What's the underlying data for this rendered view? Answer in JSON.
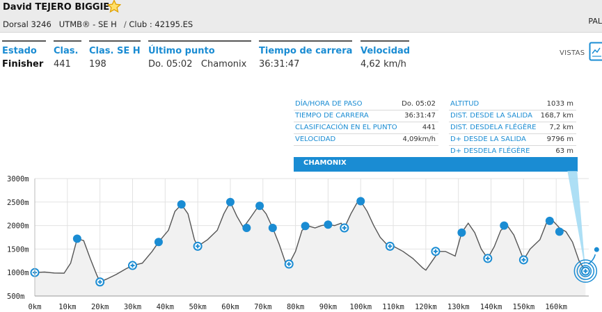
{
  "runner": {
    "name": "David TEJERO BIGGIE",
    "dorsal": "Dorsal 3246",
    "category": "UTMB® - SE H",
    "separator": "/",
    "club": "Club : 42195.ES",
    "star_icon": "star-icon",
    "truncated_right": "PAL"
  },
  "stats": {
    "estado": {
      "label": "Estado",
      "value": "Finisher"
    },
    "clas": {
      "label": "Clas.",
      "value": "441"
    },
    "clas_se_h": {
      "label": "Clas. SE H",
      "value": "198"
    },
    "ultimo_punto": {
      "label": "Último punto",
      "value": "Do. 05:02",
      "place": "Chamonix"
    },
    "tiempo": {
      "label": "Tiempo de carrera",
      "value": "36:31:47"
    },
    "velocidad": {
      "label": "Velocidad",
      "value": "4,62 km/h"
    }
  },
  "vistas": {
    "label": "VISTAS",
    "icon": "chart-view-icon"
  },
  "point_info_left": [
    {
      "k": "DÍA/HORA DE PASO",
      "v": "Do. 05:02"
    },
    {
      "k": "TIEMPO DE CARRERA",
      "v": "36:31:47"
    },
    {
      "k": "CLASIFICACIÓN EN EL PUNTO",
      "v": "441"
    },
    {
      "k": "VELOCIDAD",
      "v": "4,09km/h"
    }
  ],
  "point_info_right": [
    {
      "k": "ALTITUD",
      "v": "1033 m"
    },
    {
      "k": "DIST. DESDE LA SALIDA",
      "v": "168,7 km"
    },
    {
      "k": "DIST. DESDELA FLÉGÈRE",
      "v": "7,2 km"
    },
    {
      "k": "D+ DESDE LA SALIDA",
      "v": "9796 m"
    },
    {
      "k": "D+ DESDELA FLÉGÈRE",
      "v": "63 m"
    }
  ],
  "banner": "CHAMONIX",
  "colors": {
    "accent": "#1a8cd3",
    "profile_fill": "#f1f1f1",
    "profile_line": "#555555"
  },
  "chart_data": {
    "type": "area",
    "y_ticks": [
      "3000m",
      "2500m",
      "2000m",
      "1500m",
      "1000m",
      "500m"
    ],
    "x_ticks": [
      "0km",
      "10km",
      "20km",
      "30km",
      "40km",
      "50km",
      "60km",
      "70km",
      "80km",
      "90km",
      "100km",
      "110km",
      "120km",
      "130km",
      "140km",
      "150km",
      "160km"
    ],
    "xlim": [
      0,
      170
    ],
    "ylim": [
      500,
      3000
    ],
    "grid": true,
    "profile": [
      [
        0,
        1000
      ],
      [
        3,
        1010
      ],
      [
        6,
        990
      ],
      [
        9,
        985
      ],
      [
        11,
        1200
      ],
      [
        13,
        1720
      ],
      [
        15,
        1680
      ],
      [
        17,
        1300
      ],
      [
        19,
        950
      ],
      [
        20,
        800
      ],
      [
        22,
        860
      ],
      [
        25,
        960
      ],
      [
        28,
        1080
      ],
      [
        30,
        1150
      ],
      [
        33,
        1200
      ],
      [
        36,
        1450
      ],
      [
        38,
        1650
      ],
      [
        41,
        1900
      ],
      [
        43,
        2300
      ],
      [
        45,
        2450
      ],
      [
        47,
        2250
      ],
      [
        49,
        1700
      ],
      [
        50,
        1560
      ],
      [
        53,
        1700
      ],
      [
        56,
        1900
      ],
      [
        58,
        2250
      ],
      [
        60,
        2500
      ],
      [
        62,
        2200
      ],
      [
        64,
        1960
      ],
      [
        66,
        2150
      ],
      [
        68,
        2350
      ],
      [
        69,
        2420
      ],
      [
        71,
        2250
      ],
      [
        73,
        1950
      ],
      [
        75,
        1600
      ],
      [
        77,
        1200
      ],
      [
        78,
        1180
      ],
      [
        80,
        1450
      ],
      [
        82,
        1900
      ],
      [
        84,
        1990
      ],
      [
        86,
        1950
      ],
      [
        88,
        2000
      ],
      [
        90,
        2020
      ],
      [
        92,
        2000
      ],
      [
        94,
        2050
      ],
      [
        95,
        1950
      ],
      [
        97,
        2250
      ],
      [
        99,
        2500
      ],
      [
        100,
        2520
      ],
      [
        102,
        2300
      ],
      [
        104,
        2000
      ],
      [
        106,
        1750
      ],
      [
        108,
        1600
      ],
      [
        110,
        1560
      ],
      [
        113,
        1450
      ],
      [
        116,
        1300
      ],
      [
        119,
        1100
      ],
      [
        120,
        1050
      ],
      [
        122,
        1250
      ],
      [
        124,
        1450
      ],
      [
        126,
        1450
      ],
      [
        129,
        1350
      ],
      [
        131,
        1850
      ],
      [
        133,
        2050
      ],
      [
        135,
        1850
      ],
      [
        137,
        1500
      ],
      [
        139,
        1300
      ],
      [
        141,
        1550
      ],
      [
        143,
        1900
      ],
      [
        145,
        2000
      ],
      [
        147,
        1800
      ],
      [
        149,
        1450
      ],
      [
        150,
        1270
      ],
      [
        152,
        1500
      ],
      [
        155,
        1700
      ],
      [
        157,
        2050
      ],
      [
        159,
        2100
      ],
      [
        161,
        1950
      ],
      [
        163,
        1870
      ],
      [
        165,
        1650
      ],
      [
        167,
        1250
      ],
      [
        169,
        1030
      ]
    ],
    "checkpoints": [
      [
        0,
        1000,
        "cross"
      ],
      [
        13,
        1720,
        "dot"
      ],
      [
        20,
        800,
        "cross"
      ],
      [
        30,
        1150,
        "cross"
      ],
      [
        38,
        1650,
        "dot"
      ],
      [
        45,
        2450,
        "dot"
      ],
      [
        50,
        1560,
        "cross"
      ],
      [
        60,
        2500,
        "dot"
      ],
      [
        65,
        1950,
        "dot"
      ],
      [
        69,
        2420,
        "dot"
      ],
      [
        73,
        1950,
        "dot"
      ],
      [
        78,
        1180,
        "cross"
      ],
      [
        83,
        1990,
        "dot"
      ],
      [
        90,
        2020,
        "dot"
      ],
      [
        95,
        1950,
        "cross"
      ],
      [
        100,
        2520,
        "dot"
      ],
      [
        109,
        1560,
        "cross"
      ],
      [
        123,
        1450,
        "cross"
      ],
      [
        131,
        1850,
        "dot"
      ],
      [
        139,
        1300,
        "cross"
      ],
      [
        144,
        2000,
        "dot"
      ],
      [
        150,
        1270,
        "cross"
      ],
      [
        158,
        2100,
        "dot"
      ],
      [
        161,
        1870,
        "dot"
      ],
      [
        169,
        1030,
        "cross"
      ]
    ]
  }
}
